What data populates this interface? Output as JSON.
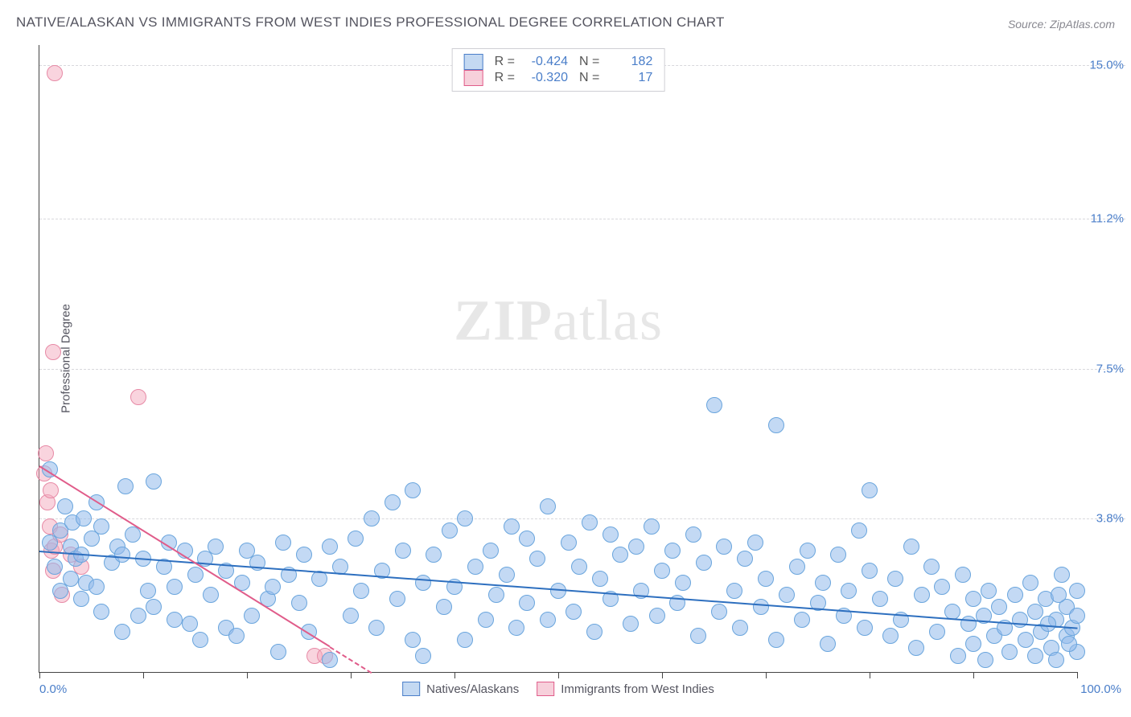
{
  "title": "NATIVE/ALASKAN VS IMMIGRANTS FROM WEST INDIES PROFESSIONAL DEGREE CORRELATION CHART",
  "source": "Source: ZipAtlas.com",
  "ylabel": "Professional Degree",
  "watermark_zip": "ZIP",
  "watermark_atlas": "atlas",
  "chart": {
    "type": "scatter",
    "xlim": [
      0,
      100
    ],
    "ylim": [
      0,
      15.5
    ],
    "yticks": [
      {
        "v": 3.8,
        "label": "3.8%"
      },
      {
        "v": 7.5,
        "label": "7.5%"
      },
      {
        "v": 11.2,
        "label": "11.2%"
      },
      {
        "v": 15.0,
        "label": "15.0%"
      }
    ],
    "xtick_positions": [
      0,
      10,
      20,
      30,
      40,
      50,
      60,
      70,
      80,
      90,
      100
    ],
    "xlabel_min": "0.0%",
    "xlabel_max": "100.0%",
    "grid_color": "#d8d8dc",
    "background_color": "#ffffff",
    "axis_color": "#444444",
    "ytick_label_color": "#4a7ec9",
    "xtick_label_color": "#4a7ec9"
  },
  "series": {
    "blue": {
      "label": "Natives/Alaskans",
      "fill": "rgba(145,185,235,0.55)",
      "stroke": "#6aa5dd",
      "swatch_fill": "#c4d9f2",
      "swatch_stroke": "#4a7ec9",
      "marker_radius": 9,
      "trend": {
        "x1": 0,
        "y1": 3.0,
        "x2": 100,
        "y2": 1.1,
        "color": "#2d6fbf",
        "width": 2
      },
      "R": "-0.424",
      "N": "182",
      "points": [
        [
          1,
          3.2
        ],
        [
          1,
          5.0
        ],
        [
          1.5,
          2.6
        ],
        [
          2,
          2.0
        ],
        [
          2,
          3.5
        ],
        [
          2.5,
          4.1
        ],
        [
          3,
          2.3
        ],
        [
          3,
          3.1
        ],
        [
          3.2,
          3.7
        ],
        [
          3.5,
          2.8
        ],
        [
          4,
          1.8
        ],
        [
          4,
          2.9
        ],
        [
          4.3,
          3.8
        ],
        [
          4.5,
          2.2
        ],
        [
          5,
          3.3
        ],
        [
          5.5,
          2.1
        ],
        [
          5.5,
          4.2
        ],
        [
          6,
          1.5
        ],
        [
          6,
          3.6
        ],
        [
          7,
          2.7
        ],
        [
          7.5,
          3.1
        ],
        [
          8,
          1.0
        ],
        [
          8,
          2.9
        ],
        [
          8.3,
          4.6
        ],
        [
          9,
          3.4
        ],
        [
          9.5,
          1.4
        ],
        [
          10,
          2.8
        ],
        [
          10.5,
          2.0
        ],
        [
          11,
          1.6
        ],
        [
          11,
          4.7
        ],
        [
          12,
          2.6
        ],
        [
          12.5,
          3.2
        ],
        [
          13,
          1.3
        ],
        [
          13,
          2.1
        ],
        [
          14,
          3.0
        ],
        [
          14.5,
          1.2
        ],
        [
          15,
          2.4
        ],
        [
          15.5,
          0.8
        ],
        [
          16,
          2.8
        ],
        [
          16.5,
          1.9
        ],
        [
          17,
          3.1
        ],
        [
          18,
          1.1
        ],
        [
          18,
          2.5
        ],
        [
          19,
          0.9
        ],
        [
          19.5,
          2.2
        ],
        [
          20,
          3.0
        ],
        [
          20.5,
          1.4
        ],
        [
          21,
          2.7
        ],
        [
          22,
          1.8
        ],
        [
          22.5,
          2.1
        ],
        [
          23,
          0.5
        ],
        [
          23.5,
          3.2
        ],
        [
          24,
          2.4
        ],
        [
          25,
          1.7
        ],
        [
          25.5,
          2.9
        ],
        [
          26,
          1.0
        ],
        [
          27,
          2.3
        ],
        [
          28,
          3.1
        ],
        [
          28,
          0.3
        ],
        [
          29,
          2.6
        ],
        [
          30,
          1.4
        ],
        [
          30.5,
          3.3
        ],
        [
          31,
          2.0
        ],
        [
          32,
          3.8
        ],
        [
          32.5,
          1.1
        ],
        [
          33,
          2.5
        ],
        [
          34,
          4.2
        ],
        [
          34.5,
          1.8
        ],
        [
          35,
          3.0
        ],
        [
          36,
          0.8
        ],
        [
          36,
          4.5
        ],
        [
          37,
          2.2
        ],
        [
          37,
          0.4
        ],
        [
          38,
          2.9
        ],
        [
          39,
          1.6
        ],
        [
          39.5,
          3.5
        ],
        [
          40,
          2.1
        ],
        [
          41,
          3.8
        ],
        [
          41,
          0.8
        ],
        [
          42,
          2.6
        ],
        [
          43,
          1.3
        ],
        [
          43.5,
          3.0
        ],
        [
          44,
          1.9
        ],
        [
          45,
          2.4
        ],
        [
          45.5,
          3.6
        ],
        [
          46,
          1.1
        ],
        [
          47,
          3.3
        ],
        [
          47,
          1.7
        ],
        [
          48,
          2.8
        ],
        [
          49,
          1.3
        ],
        [
          49,
          4.1
        ],
        [
          50,
          2.0
        ],
        [
          51,
          3.2
        ],
        [
          51.5,
          1.5
        ],
        [
          52,
          2.6
        ],
        [
          53,
          3.7
        ],
        [
          53.5,
          1.0
        ],
        [
          54,
          2.3
        ],
        [
          55,
          3.4
        ],
        [
          55,
          1.8
        ],
        [
          56,
          2.9
        ],
        [
          57,
          1.2
        ],
        [
          57.5,
          3.1
        ],
        [
          58,
          2.0
        ],
        [
          59,
          3.6
        ],
        [
          59.5,
          1.4
        ],
        [
          60,
          2.5
        ],
        [
          61,
          3.0
        ],
        [
          61.5,
          1.7
        ],
        [
          62,
          2.2
        ],
        [
          63,
          3.4
        ],
        [
          63.5,
          0.9
        ],
        [
          64,
          2.7
        ],
        [
          65,
          6.6
        ],
        [
          65.5,
          1.5
        ],
        [
          66,
          3.1
        ],
        [
          67,
          2.0
        ],
        [
          67.5,
          1.1
        ],
        [
          68,
          2.8
        ],
        [
          69,
          3.2
        ],
        [
          69.5,
          1.6
        ],
        [
          70,
          2.3
        ],
        [
          71,
          0.8
        ],
        [
          71,
          6.1
        ],
        [
          72,
          1.9
        ],
        [
          73,
          2.6
        ],
        [
          73.5,
          1.3
        ],
        [
          74,
          3.0
        ],
        [
          75,
          1.7
        ],
        [
          75.5,
          2.2
        ],
        [
          76,
          0.7
        ],
        [
          77,
          2.9
        ],
        [
          77.5,
          1.4
        ],
        [
          78,
          2.0
        ],
        [
          79,
          3.5
        ],
        [
          79.5,
          1.1
        ],
        [
          80,
          4.5
        ],
        [
          80,
          2.5
        ],
        [
          81,
          1.8
        ],
        [
          82,
          0.9
        ],
        [
          82.5,
          2.3
        ],
        [
          83,
          1.3
        ],
        [
          84,
          3.1
        ],
        [
          84.5,
          0.6
        ],
        [
          85,
          1.9
        ],
        [
          86,
          2.6
        ],
        [
          86.5,
          1.0
        ],
        [
          87,
          2.1
        ],
        [
          88,
          1.5
        ],
        [
          88.5,
          0.4
        ],
        [
          89,
          2.4
        ],
        [
          89.5,
          1.2
        ],
        [
          90,
          1.8
        ],
        [
          90,
          0.7
        ],
        [
          91,
          1.4
        ],
        [
          91.2,
          0.3
        ],
        [
          91.5,
          2.0
        ],
        [
          92,
          0.9
        ],
        [
          92.5,
          1.6
        ],
        [
          93,
          1.1
        ],
        [
          93.5,
          0.5
        ],
        [
          94,
          1.9
        ],
        [
          94.5,
          1.3
        ],
        [
          95,
          0.8
        ],
        [
          95.5,
          2.2
        ],
        [
          96,
          1.5
        ],
        [
          96,
          0.4
        ],
        [
          96.5,
          1.0
        ],
        [
          97,
          1.8
        ],
        [
          97.5,
          0.6
        ],
        [
          98,
          1.3
        ],
        [
          98,
          0.3
        ],
        [
          98.5,
          2.4
        ],
        [
          99,
          0.9
        ],
        [
          99,
          1.6
        ],
        [
          99.5,
          1.1
        ],
        [
          100,
          1.4
        ],
        [
          100,
          0.5
        ],
        [
          100,
          2.0
        ],
        [
          99.2,
          0.7
        ],
        [
          98.2,
          1.9
        ],
        [
          97.2,
          1.2
        ]
      ]
    },
    "pink": {
      "label": "Immigrants from West Indies",
      "fill": "rgba(244,170,190,0.5)",
      "stroke": "#e78aa6",
      "swatch_fill": "#f7d0db",
      "swatch_stroke": "#e05c8a",
      "marker_radius": 9,
      "trend": {
        "x1": 0,
        "y1": 5.1,
        "x2": 32,
        "y2": 0,
        "color": "#e05c8a",
        "width": 2,
        "dash_after_x": 28
      },
      "R": "-0.320",
      "N": "17",
      "points": [
        [
          0.5,
          4.9
        ],
        [
          0.6,
          5.4
        ],
        [
          0.8,
          4.2
        ],
        [
          1.0,
          3.6
        ],
        [
          1.1,
          4.5
        ],
        [
          1.2,
          3.0
        ],
        [
          1.3,
          2.5
        ],
        [
          1.3,
          7.9
        ],
        [
          1.5,
          3.1
        ],
        [
          1.5,
          14.8
        ],
        [
          2.0,
          3.4
        ],
        [
          2.2,
          1.9
        ],
        [
          3.0,
          2.9
        ],
        [
          4.0,
          2.6
        ],
        [
          9.5,
          6.8
        ],
        [
          26.5,
          0.4
        ],
        [
          27.5,
          0.4
        ]
      ]
    }
  },
  "legend_top": {
    "rlabel": "R =",
    "nlabel": "N ="
  }
}
